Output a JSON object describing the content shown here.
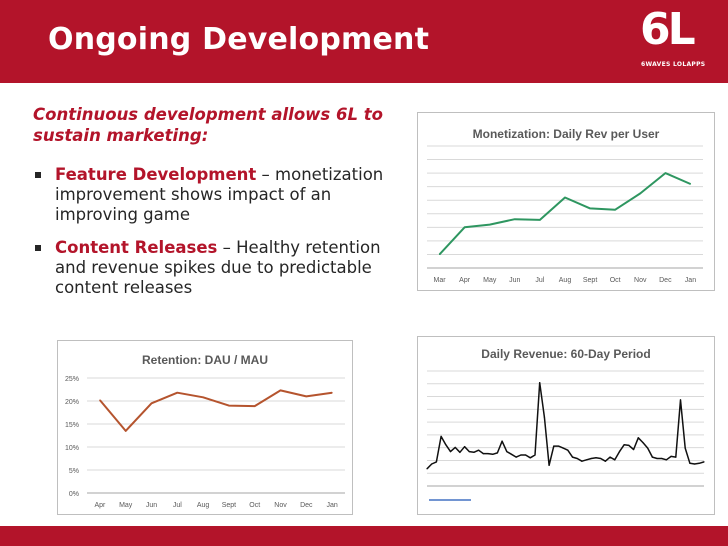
{
  "header": {
    "title": "Ongoing Development",
    "logo_main": "6L",
    "logo_sub": "6WAVES LOLAPPS"
  },
  "intro": {
    "line1": "Continuous development allows 6L to",
    "line2": "sustain marketing:"
  },
  "bullets": [
    {
      "term": "Feature Development",
      "text": " – monetization improvement shows impact of an improving game"
    },
    {
      "term": "Content Releases",
      "text": " – Healthy retention and revenue spikes due to predictable content releases"
    }
  ],
  "colors": {
    "brand": "#b3142a",
    "monetization_line": "#2e9660",
    "retention_line": "#b5542e",
    "revenue_line": "#111111"
  },
  "chart_data": [
    {
      "id": "monetization",
      "type": "line",
      "title": "Monetization: Daily Rev per User",
      "categories": [
        "Mar",
        "Apr",
        "May",
        "Jun",
        "Jul",
        "Aug",
        "Sept",
        "Oct",
        "Nov",
        "Dec",
        "Jan"
      ],
      "values": [
        1.0,
        3.0,
        3.2,
        3.6,
        3.55,
        5.2,
        4.4,
        4.3,
        5.5,
        7.0,
        6.2
      ],
      "ylim": [
        0,
        9
      ],
      "gridlines": 9,
      "show_y_labels": false
    },
    {
      "id": "retention",
      "type": "line",
      "title": "Retention: DAU / MAU",
      "categories": [
        "Apr",
        "May",
        "Jun",
        "Jul",
        "Aug",
        "Sept",
        "Oct",
        "Nov",
        "Dec",
        "Jan"
      ],
      "values": [
        20.2,
        13.5,
        19.5,
        21.8,
        20.8,
        19.0,
        18.9,
        22.3,
        21.0,
        21.8
      ],
      "ylim": [
        0,
        25
      ],
      "yticks": [
        "0%",
        "5%",
        "10%",
        "15%",
        "20%",
        "25%"
      ],
      "gridlines": 5
    },
    {
      "id": "revenue",
      "type": "line",
      "title": "Daily Revenue: 60-Day Period",
      "values": [
        2.5,
        3.2,
        3.5,
        7.2,
        6.0,
        5.0,
        5.6,
        4.9,
        5.7,
        5.0,
        4.9,
        5.2,
        4.7,
        4.7,
        4.6,
        4.8,
        6.5,
        5.0,
        4.6,
        4.2,
        4.5,
        4.5,
        4.1,
        4.5,
        15.0,
        10.0,
        3.0,
        5.8,
        5.8,
        5.5,
        5.2,
        4.2,
        4.0,
        3.6,
        3.8,
        4.0,
        4.1,
        4.0,
        3.6,
        4.2,
        3.8,
        5.0,
        6.0,
        5.9,
        5.3,
        7.0,
        6.3,
        5.5,
        4.2,
        4.0,
        4.0,
        3.8,
        4.3,
        4.2,
        12.5,
        5.5,
        3.3,
        3.2,
        3.3,
        3.5
      ],
      "ylim": [
        0,
        16.7
      ],
      "gridlines": 9,
      "show_y_labels": false
    }
  ]
}
